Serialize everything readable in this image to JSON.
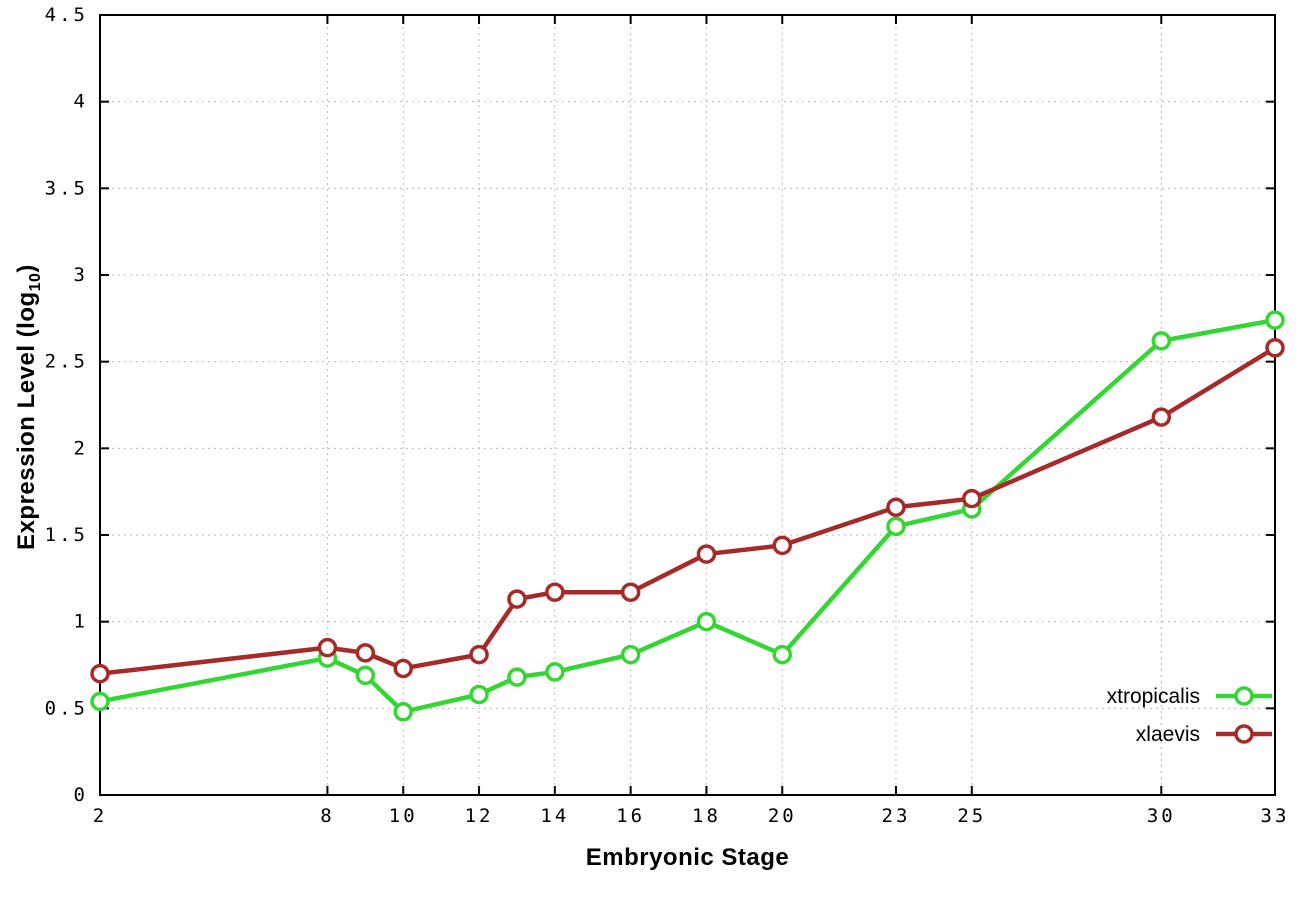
{
  "page": {
    "background": "#ffffff"
  },
  "chart_data": {
    "type": "line",
    "title": "",
    "xlabel": "Embryonic Stage",
    "ylabel": {
      "main": "Expression Level (log",
      "sub": "10",
      "end": ")"
    },
    "xlim": [
      2,
      33
    ],
    "ylim": [
      0,
      4.5
    ],
    "xticks": [
      2,
      8,
      10,
      12,
      14,
      16,
      18,
      20,
      23,
      25,
      30,
      33
    ],
    "yticks": [
      0,
      0.5,
      1,
      1.5,
      2,
      2.5,
      3,
      3.5,
      4,
      4.5
    ],
    "grid": true,
    "legend_position": "bottom-right",
    "marker": "open-circle",
    "x": [
      2,
      8,
      9,
      10,
      12,
      13,
      14,
      16,
      18,
      20,
      23,
      25,
      30,
      33
    ],
    "series": [
      {
        "name": "xtropicalis",
        "color": "#33d633",
        "values": [
          0.54,
          0.79,
          0.69,
          0.48,
          0.58,
          0.68,
          0.71,
          0.81,
          1.0,
          0.81,
          1.55,
          1.65,
          2.62,
          2.74
        ]
      },
      {
        "name": "xlaevis",
        "color": "#a52a2a",
        "values": [
          0.7,
          0.85,
          0.82,
          0.73,
          0.81,
          1.13,
          1.17,
          1.17,
          1.39,
          1.44,
          1.66,
          1.71,
          2.18,
          2.58
        ]
      }
    ]
  },
  "style": {
    "grid_color": "#bbbbbb",
    "axis_color": "#000000",
    "marker_fill": "#ffffff",
    "text_color": "#000000"
  }
}
